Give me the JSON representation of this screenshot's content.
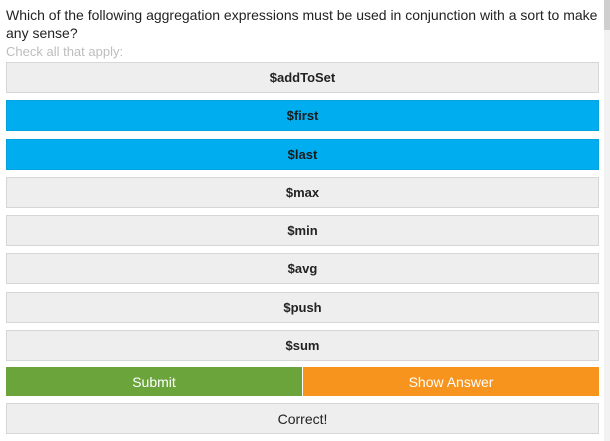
{
  "question": {
    "text": "Which of the following aggregation expressions must be used in conjunction with a sort to make any sense?",
    "hint": "Check all that apply:"
  },
  "options": [
    {
      "label": "$addToSet",
      "selected": false
    },
    {
      "label": "$first",
      "selected": true
    },
    {
      "label": "$last",
      "selected": true
    },
    {
      "label": "$max",
      "selected": false
    },
    {
      "label": "$min",
      "selected": false
    },
    {
      "label": "$avg",
      "selected": false
    },
    {
      "label": "$push",
      "selected": false
    },
    {
      "label": "$sum",
      "selected": false
    }
  ],
  "actions": {
    "submit_label": "Submit",
    "show_answer_label": "Show Answer"
  },
  "result": {
    "text": "Correct!"
  },
  "colors": {
    "selected": "#00aeef",
    "unselected": "#eeeeee",
    "submit": "#6aa43a",
    "show_answer": "#f7941d"
  }
}
